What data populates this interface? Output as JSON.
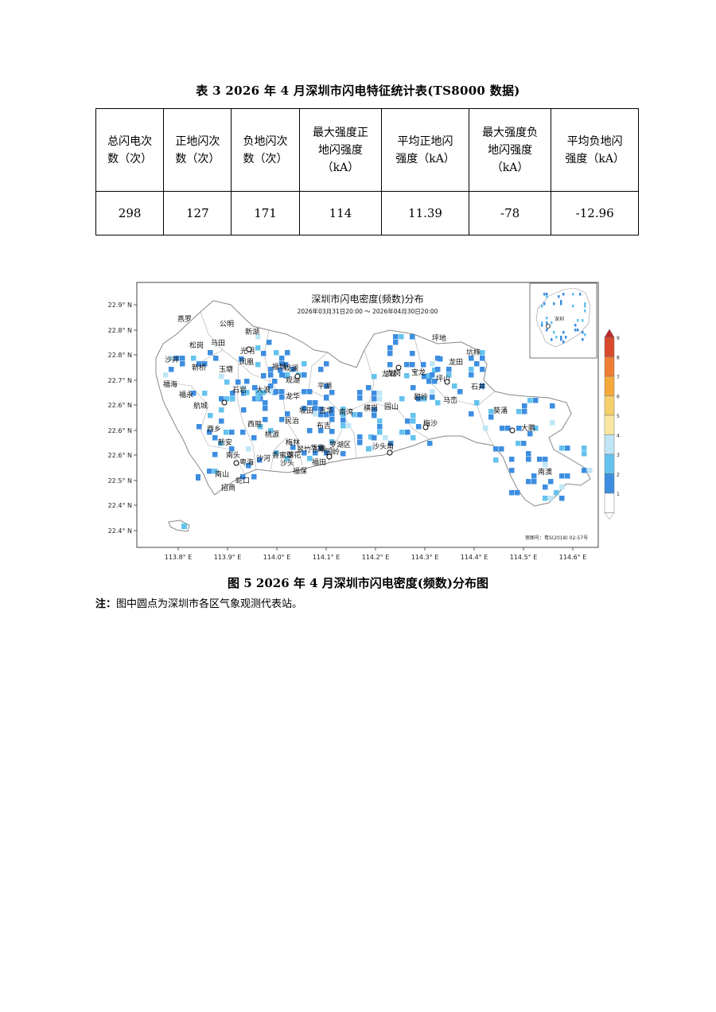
{
  "table": {
    "caption": "表 3   2026 年 4 月深圳市闪电特征统计表(TS8000 数据)",
    "headers": [
      [
        "总闪电次",
        "数（次）"
      ],
      [
        "正地闪次",
        "数（次）"
      ],
      [
        "负地闪次",
        "数（次）"
      ],
      [
        "最大强度正",
        "地闪强度",
        "（kA）"
      ],
      [
        "平均正地闪",
        "强度（kA）"
      ],
      [
        "最大强度负",
        "地闪强度",
        "（kA）"
      ],
      [
        "平均负地闪",
        "强度（kA）"
      ]
    ],
    "values": [
      "298",
      "127",
      "171",
      "114",
      "11.39",
      "-78",
      "-12.96"
    ]
  },
  "map": {
    "title": "深圳市闪电密度(频数)分布",
    "subtitle": "2026年03月31日20:00 ～ 2026年04月30日20:00",
    "approval": "审图号：粤S(2018) 02-57号",
    "lat_labels": [
      "22.9° N",
      "22.8° N",
      "22.8° N",
      "22.7° N",
      "22.6° N",
      "22.6° N",
      "22.6° N",
      "22.5° N",
      "22.4° N",
      "22.4° N"
    ],
    "lon_labels": [
      "113.8° E",
      "113.9° E",
      "114.0° E",
      "114.1° E",
      "114.2° E",
      "114.3° E",
      "114.4° E",
      "114.5° E",
      "114.6° E"
    ],
    "inset_label": "深圳",
    "places": [
      "燕罗",
      "公明",
      "新湖",
      "松岗",
      "马田",
      "光明",
      "观澜",
      "沙井",
      "新桥",
      "玉塘",
      "凤凰",
      "福城",
      "观湖",
      "福海",
      "石岩",
      "大浪",
      "平湖",
      "福永",
      "航城",
      "龙华",
      "坂田",
      "吉华",
      "南湾",
      "横岗",
      "园山",
      "西乡",
      "西丽",
      "民治",
      "布吉",
      "龙岗",
      "宝龙",
      "坪地",
      "龙田",
      "坑梓",
      "坪山",
      "马峦",
      "石井",
      "碧岭",
      "葵涌",
      "大鹏",
      "梅沙",
      "南澳",
      "新安",
      "桃源",
      "梅林",
      "翠竹",
      "东晓",
      "沙头角",
      "南头",
      "粤海",
      "沙河",
      "香蜜湖",
      "莲花",
      "华富",
      "园岭",
      "福田",
      "沙头",
      "福保",
      "南山",
      "蛇口",
      "招商",
      "罗湖区",
      "龙城"
    ],
    "legend": [
      "1",
      "2",
      "3",
      "4",
      "5",
      "6",
      "7",
      "8",
      "9"
    ],
    "legend_colors": [
      "#ffffff",
      "#3d8ee0",
      "#64c3ee",
      "#bfe6f7",
      "#fbe6a0",
      "#f7cf68",
      "#f4a93a",
      "#ef7d33",
      "#d94a2c"
    ]
  },
  "figure": {
    "caption": "图 5   2026 年 4 月深圳市闪电密度(频数)分布图",
    "note_label": "注：",
    "note_text": "图中圆点为深圳市各区气象观测代表站。"
  }
}
